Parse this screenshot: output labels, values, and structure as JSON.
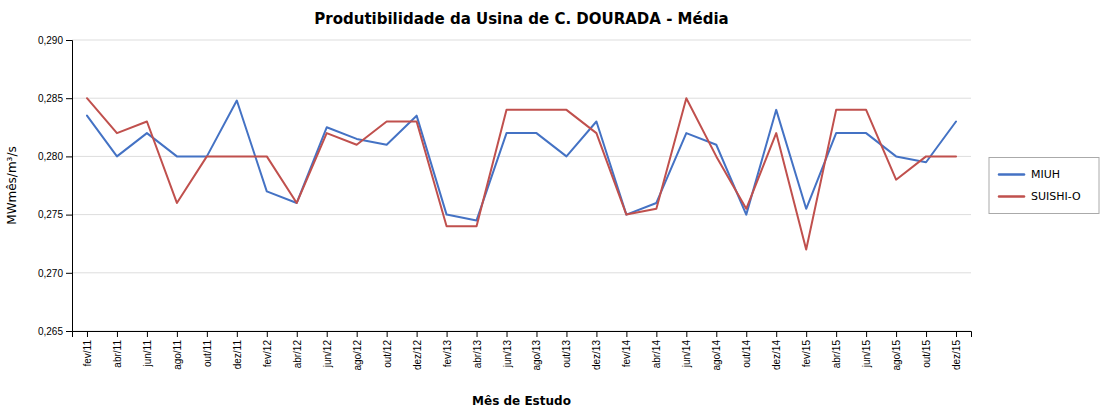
{
  "chart_data": {
    "type": "line",
    "title": "Produtibilidade da Usina de C. DOURADA - Média",
    "x_label": "Mês de Estudo",
    "y_label": "MWmês/m³/s",
    "categories": [
      "fev/11",
      "abr/11",
      "jun/11",
      "ago/11",
      "out/11",
      "dez/11",
      "fev/12",
      "abr/12",
      "jun/12",
      "ago/12",
      "out/12",
      "dez/12",
      "fev/13",
      "abr/13",
      "jun/13",
      "ago/13",
      "out/13",
      "dez/13",
      "fev/14",
      "abr/14",
      "jun/14",
      "ago/14",
      "out/14",
      "dez/14",
      "fev/15",
      "abr/15",
      "jun/15",
      "ago/15",
      "out/15",
      "dez/15"
    ],
    "series": [
      {
        "name": "MIUH",
        "color": "#4472C4",
        "values": [
          0.2835,
          0.28,
          0.282,
          0.28,
          0.28,
          0.2848,
          0.277,
          0.276,
          0.2825,
          0.2815,
          0.281,
          0.2835,
          0.275,
          0.2745,
          0.282,
          0.282,
          0.28,
          0.283,
          0.275,
          0.276,
          0.282,
          0.281,
          0.275,
          0.284,
          0.2755,
          0.282,
          0.282,
          0.28,
          0.2795,
          0.283
        ]
      },
      {
        "name": "SUISHI-O",
        "color": "#C0504D",
        "values": [
          0.285,
          0.282,
          0.283,
          0.276,
          0.28,
          0.28,
          0.28,
          0.276,
          0.282,
          0.281,
          0.283,
          0.283,
          0.274,
          0.274,
          0.284,
          0.284,
          0.284,
          0.282,
          0.275,
          0.2755,
          0.285,
          0.28,
          0.2755,
          0.282,
          0.272,
          0.284,
          0.284,
          0.278,
          0.28,
          0.28
        ]
      }
    ],
    "ylim": [
      0.265,
      0.29
    ],
    "yticks": [
      {
        "value": 0.265,
        "label": "0,265"
      },
      {
        "value": 0.27,
        "label": "0,270"
      },
      {
        "value": 0.275,
        "label": "0,275"
      },
      {
        "value": 0.28,
        "label": "0,280"
      },
      {
        "value": 0.285,
        "label": "0,285"
      },
      {
        "value": 0.29,
        "label": "0,290"
      }
    ],
    "grid": true,
    "legend": "right"
  }
}
